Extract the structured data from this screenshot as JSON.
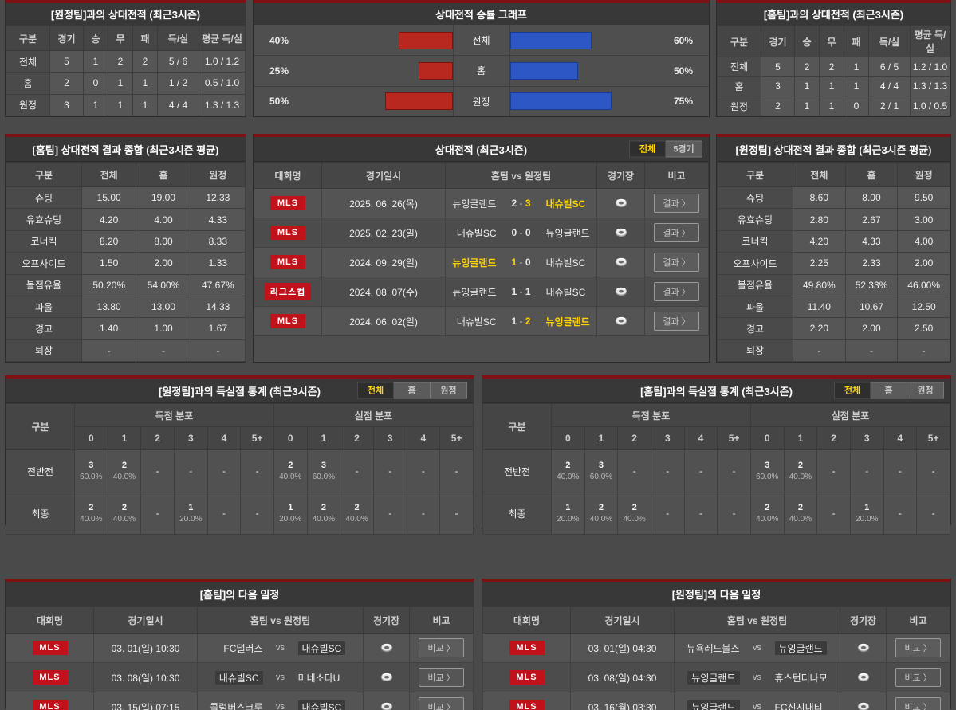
{
  "colors": {
    "accent_yellow": "#ffd400",
    "bar_red": "#b9281e",
    "bar_blue": "#2c57c5",
    "badge_red": "#c1121c",
    "panel_accent": "#7d1114"
  },
  "ui": {
    "arrow": "〉",
    "empty": "-",
    "vs": "vs"
  },
  "panels": {
    "h2h_away": {
      "title": "[원정팀]과의 상대전적 (최근3시즌)",
      "headers": [
        "구분",
        "경기",
        "승",
        "무",
        "패",
        "득/실",
        "평균 득/실"
      ],
      "rows": [
        {
          "label": "전체",
          "cells": [
            "5",
            "1",
            "2",
            "2",
            "5 / 6",
            "1.0 / 1.2"
          ]
        },
        {
          "label": "홈",
          "cells": [
            "2",
            "0",
            "1",
            "1",
            "1 / 2",
            "0.5 / 1.0"
          ]
        },
        {
          "label": "원정",
          "cells": [
            "3",
            "1",
            "1",
            "1",
            "4 / 4",
            "1.3 / 1.3"
          ]
        }
      ]
    },
    "winrate": {
      "title": "상대전적 승률 그래프",
      "rows": [
        {
          "label": "전체",
          "left_pct": 40,
          "left_label": "40%",
          "right_pct": 60,
          "right_label": "60%"
        },
        {
          "label": "홈",
          "left_pct": 25,
          "left_label": "25%",
          "right_pct": 50,
          "right_label": "50%"
        },
        {
          "label": "원정",
          "left_pct": 50,
          "left_label": "50%",
          "right_pct": 75,
          "right_label": "75%"
        }
      ]
    },
    "h2h_home": {
      "title": "[홈팀]과의 상대전적 (최근3시즌)",
      "headers": [
        "구분",
        "경기",
        "승",
        "무",
        "패",
        "득/실",
        "평균 득/실"
      ],
      "rows": [
        {
          "label": "전체",
          "cells": [
            "5",
            "2",
            "2",
            "1",
            "6 / 5",
            "1.2 / 1.0"
          ]
        },
        {
          "label": "홈",
          "cells": [
            "3",
            "1",
            "1",
            "1",
            "4 / 4",
            "1.3 / 1.3"
          ]
        },
        {
          "label": "원정",
          "cells": [
            "2",
            "1",
            "1",
            "0",
            "2 / 1",
            "1.0 / 0.5"
          ]
        }
      ]
    },
    "home_avg": {
      "title": "[홈팀] 상대전적 결과 종합 (최근3시즌 평균)",
      "headers": [
        "구분",
        "전체",
        "홈",
        "원정"
      ],
      "rows": [
        {
          "label": "슈팅",
          "cells": [
            "15.00",
            "19.00",
            "12.33"
          ]
        },
        {
          "label": "유효슈팅",
          "cells": [
            "4.20",
            "4.00",
            "4.33"
          ]
        },
        {
          "label": "코너킥",
          "cells": [
            "8.20",
            "8.00",
            "8.33"
          ]
        },
        {
          "label": "오프사이드",
          "cells": [
            "1.50",
            "2.00",
            "1.33"
          ]
        },
        {
          "label": "볼점유율",
          "cells": [
            "50.20%",
            "54.00%",
            "47.67%"
          ]
        },
        {
          "label": "파울",
          "cells": [
            "13.80",
            "13.00",
            "14.33"
          ]
        },
        {
          "label": "경고",
          "cells": [
            "1.40",
            "1.00",
            "1.67"
          ]
        },
        {
          "label": "퇴장",
          "cells": [
            "-",
            "-",
            "-"
          ]
        }
      ]
    },
    "matches": {
      "title": "상대전적 (최근3시즌)",
      "tabs": [
        {
          "label": "전체",
          "active": true
        },
        {
          "label": "5경기",
          "active": false
        }
      ],
      "headers": [
        "대회명",
        "경기일시",
        "홈팀  vs  원정팀",
        "경기장",
        "비고"
      ],
      "button": "결과",
      "rows": [
        {
          "league": "MLS",
          "date": "2025. 06. 26(목)",
          "home": "뉴잉글랜드",
          "hs": "2",
          "as": "3",
          "away": "내슈빌SC",
          "winner": "away"
        },
        {
          "league": "MLS",
          "date": "2025. 02. 23(일)",
          "home": "내슈빌SC",
          "hs": "0",
          "as": "0",
          "away": "뉴잉글랜드",
          "winner": "draw"
        },
        {
          "league": "MLS",
          "date": "2024. 09. 29(일)",
          "home": "뉴잉글랜드",
          "hs": "1",
          "as": "0",
          "away": "내슈빌SC",
          "winner": "home"
        },
        {
          "league": "리그스컵",
          "date": "2024. 08. 07(수)",
          "home": "뉴잉글랜드",
          "hs": "1",
          "as": "1",
          "away": "내슈빌SC",
          "winner": "draw"
        },
        {
          "league": "MLS",
          "date": "2024. 06. 02(일)",
          "home": "내슈빌SC",
          "hs": "1",
          "as": "2",
          "away": "뉴잉글랜드",
          "winner": "away"
        }
      ]
    },
    "away_avg": {
      "title": "[원정팀] 상대전적 결과 종합 (최근3시즌 평균)",
      "headers": [
        "구분",
        "전체",
        "홈",
        "원정"
      ],
      "rows": [
        {
          "label": "슈팅",
          "cells": [
            "8.60",
            "8.00",
            "9.50"
          ]
        },
        {
          "label": "유효슈팅",
          "cells": [
            "2.80",
            "2.67",
            "3.00"
          ]
        },
        {
          "label": "코너킥",
          "cells": [
            "4.20",
            "4.33",
            "4.00"
          ]
        },
        {
          "label": "오프사이드",
          "cells": [
            "2.25",
            "2.33",
            "2.00"
          ]
        },
        {
          "label": "볼점유율",
          "cells": [
            "49.80%",
            "52.33%",
            "46.00%"
          ]
        },
        {
          "label": "파울",
          "cells": [
            "11.40",
            "10.67",
            "12.50"
          ]
        },
        {
          "label": "경고",
          "cells": [
            "2.20",
            "2.00",
            "2.50"
          ]
        },
        {
          "label": "퇴장",
          "cells": [
            "-",
            "-",
            "-"
          ]
        }
      ]
    },
    "dist_away": {
      "title": "[원정팀]과의 득실점 통계 (최근3시즌)",
      "tabs": [
        {
          "label": "전체",
          "active": true
        },
        {
          "label": "홈",
          "active": false
        },
        {
          "label": "원정",
          "active": false
        }
      ],
      "col_label": "구분",
      "group1": "득점 분포",
      "group2": "실점 분포",
      "cols": [
        "0",
        "1",
        "2",
        "3",
        "4",
        "5+"
      ],
      "rows": [
        {
          "label": "전반전",
          "score": [
            {
              "n": "3",
              "p": "60.0%"
            },
            {
              "n": "2",
              "p": "40.0%"
            },
            null,
            null,
            null,
            null
          ],
          "concede": [
            {
              "n": "2",
              "p": "40.0%"
            },
            {
              "n": "3",
              "p": "60.0%"
            },
            null,
            null,
            null,
            null
          ]
        },
        {
          "label": "최종",
          "score": [
            {
              "n": "2",
              "p": "40.0%"
            },
            {
              "n": "2",
              "p": "40.0%"
            },
            null,
            {
              "n": "1",
              "p": "20.0%"
            },
            null,
            null
          ],
          "concede": [
            {
              "n": "1",
              "p": "20.0%"
            },
            {
              "n": "2",
              "p": "40.0%"
            },
            {
              "n": "2",
              "p": "40.0%"
            },
            null,
            null,
            null
          ]
        }
      ]
    },
    "dist_home": {
      "title": "[홈팀]과의 득실점 통계 (최근3시즌)",
      "tabs": [
        {
          "label": "전체",
          "active": true
        },
        {
          "label": "홈",
          "active": false
        },
        {
          "label": "원정",
          "active": false
        }
      ],
      "col_label": "구분",
      "group1": "득점 분포",
      "group2": "실점 분포",
      "cols": [
        "0",
        "1",
        "2",
        "3",
        "4",
        "5+"
      ],
      "rows": [
        {
          "label": "전반전",
          "score": [
            {
              "n": "2",
              "p": "40.0%"
            },
            {
              "n": "3",
              "p": "60.0%"
            },
            null,
            null,
            null,
            null
          ],
          "concede": [
            {
              "n": "3",
              "p": "60.0%"
            },
            {
              "n": "2",
              "p": "40.0%"
            },
            null,
            null,
            null,
            null
          ]
        },
        {
          "label": "최종",
          "score": [
            {
              "n": "1",
              "p": "20.0%"
            },
            {
              "n": "2",
              "p": "40.0%"
            },
            {
              "n": "2",
              "p": "40.0%"
            },
            null,
            null,
            null
          ],
          "concede": [
            {
              "n": "2",
              "p": "40.0%"
            },
            {
              "n": "2",
              "p": "40.0%"
            },
            null,
            {
              "n": "1",
              "p": "20.0%"
            },
            null,
            null
          ]
        }
      ]
    },
    "sched_home": {
      "title": "[홈팀]의 다음 일정",
      "headers": [
        "대회명",
        "경기일시",
        "홈팀  vs  원정팀",
        "경기장",
        "비고"
      ],
      "button": "비교",
      "rows": [
        {
          "league": "MLS",
          "date": "03. 01(일) 10:30",
          "home": "FC댈러스",
          "away": "내슈빌SC",
          "hl": "away"
        },
        {
          "league": "MLS",
          "date": "03. 08(일) 10:30",
          "home": "내슈빌SC",
          "away": "미네소타U",
          "hl": "home"
        },
        {
          "league": "MLS",
          "date": "03. 15(일) 07:15",
          "home": "콜럼버스크루",
          "away": "내슈빌SC",
          "hl": "away"
        }
      ]
    },
    "sched_away": {
      "title": "[원정팀]의 다음 일정",
      "headers": [
        "대회명",
        "경기일시",
        "홈팀  vs  원정팀",
        "경기장",
        "비고"
      ],
      "button": "비교",
      "rows": [
        {
          "league": "MLS",
          "date": "03. 01(일) 04:30",
          "home": "뉴욕레드불스",
          "away": "뉴잉글랜드",
          "hl": "away"
        },
        {
          "league": "MLS",
          "date": "03. 08(일) 04:30",
          "home": "뉴잉글랜드",
          "away": "휴스턴디나모",
          "hl": "home"
        },
        {
          "league": "MLS",
          "date": "03. 16(월) 03:30",
          "home": "뉴잉글랜드",
          "away": "FC신시내티",
          "hl": "home"
        }
      ]
    }
  }
}
